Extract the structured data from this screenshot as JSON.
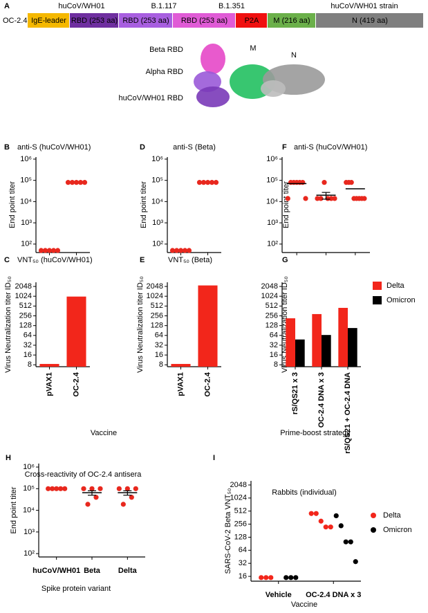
{
  "construct": {
    "panel": "A",
    "name": "OC-2.4",
    "headers": [
      "huCoV/WH01",
      "B.1.117",
      "B.1.351",
      "huCoV/WH01 strain"
    ],
    "segments": [
      {
        "label": "IgE-leader",
        "color": "#f5b800"
      },
      {
        "label": "RBD (253 aa)",
        "color": "#6f2fa0"
      },
      {
        "label": "RBD (253 aa)",
        "color": "#a85fe0"
      },
      {
        "label": "RBD (253 aa)",
        "color": "#e05bd6"
      },
      {
        "label": "P2A",
        "color": "#f01010"
      },
      {
        "label": "M (216 aa)",
        "color": "#6bb04a"
      },
      {
        "label": "N (419 aa)",
        "color": "#7f7f7f"
      }
    ],
    "structure_labels": [
      "Beta RBD",
      "Alpha RBD",
      "huCoV/WH01 RBD",
      "M",
      "N"
    ]
  },
  "chart_data": [
    {
      "type": "strip",
      "panel": "B",
      "title": "anti-S (huCoV/WH01)",
      "y_label": "End point titer",
      "log_scale": true,
      "color": "#e8281e",
      "values": [
        [
          50,
          50,
          50,
          50,
          50
        ],
        [
          80000,
          80000,
          80000,
          80000,
          80000
        ]
      ],
      "ylim": [
        40,
        1250000
      ],
      "yticks": [
        {
          "value": 100,
          "label": "10²"
        },
        {
          "value": 1000,
          "label": "10³"
        },
        {
          "value": 10000,
          "label": "10⁴"
        },
        {
          "value": 100000,
          "label": "10⁵"
        },
        {
          "value": 1000000,
          "label": "10⁶"
        }
      ]
    },
    {
      "type": "bar",
      "panel": "C",
      "title": "VNT₅₀ (huCoV/WH01)",
      "y_label": "Virus Neutralization titer  ID₅₀",
      "x_label": "Vaccine",
      "log_scale": true,
      "color": "#f2261b",
      "categories": [
        "pVAX1",
        "OC-2.4"
      ],
      "values": [
        8.5,
        1000
      ],
      "ylim": [
        7,
        2750
      ],
      "yticks": [
        8,
        16,
        32,
        64,
        128,
        256,
        512,
        1024,
        2048
      ]
    },
    {
      "type": "strip",
      "panel": "D",
      "title": "anti-S (Beta)",
      "y_label": "End point titer",
      "log_scale": true,
      "color": "#e8281e",
      "values": [
        [
          50,
          50,
          50,
          50,
          50
        ],
        [
          80000,
          80000,
          80000,
          80000,
          80000
        ]
      ],
      "ylim": [
        40,
        1250000
      ],
      "yticks": [
        {
          "value": 100,
          "label": "10²"
        },
        {
          "value": 1000,
          "label": "10³"
        },
        {
          "value": 10000,
          "label": "10⁴"
        },
        {
          "value": 100000,
          "label": "10⁵"
        },
        {
          "value": 1000000,
          "label": "10⁶"
        }
      ]
    },
    {
      "type": "bar",
      "panel": "E",
      "title": "VNT₅₀ (Beta)",
      "y_label": "Virus Neutralization titer  ID₅₀",
      "log_scale": true,
      "color": "#f2261b",
      "categories": [
        "pVAX1",
        "OC-2.4"
      ],
      "values": [
        8.5,
        2200
      ],
      "ylim": [
        7,
        2750
      ],
      "yticks": [
        8,
        16,
        32,
        64,
        128,
        256,
        512,
        1024,
        2048
      ]
    },
    {
      "type": "strip",
      "panel": "F",
      "title": "anti-S (huCoV/WH01)",
      "y_label": "End point titer",
      "log_scale": true,
      "color": "#e8281e",
      "values": [
        [
          14000,
          80000,
          80000,
          80000,
          80000,
          80000,
          14000
        ],
        [
          14000,
          14000,
          80000,
          14000,
          14000,
          14000
        ],
        [
          80000,
          80000,
          80000,
          14000,
          14000,
          14000,
          14000,
          14000
        ]
      ],
      "means": [
        70000,
        20000,
        40000
      ],
      "errors": [
        null,
        7000,
        null
      ],
      "ylim": [
        40,
        1250000
      ],
      "yticks": [
        {
          "value": 100,
          "label": "10²"
        },
        {
          "value": 1000,
          "label": "10³"
        },
        {
          "value": 10000,
          "label": "10⁴"
        },
        {
          "value": 100000,
          "label": "10⁵"
        },
        {
          "value": 1000000,
          "label": "10⁶"
        }
      ]
    },
    {
      "type": "grouped_bar",
      "panel": "G",
      "y_label": "Virus Neutralization titer  ID₅₀",
      "x_label": "Prime-boost strategy",
      "log_scale": true,
      "legend": "upper right",
      "categories": [
        "rS/QS21 x 3",
        "OC-2.4 DNA  x 3",
        "rS/QS21 + OC-2.4 DNA"
      ],
      "series": [
        {
          "name": "Delta",
          "color": "#f2261b",
          "values": [
            215,
            290,
            450
          ]
        },
        {
          "name": "Omicron",
          "color": "#000000",
          "values": [
            48,
            66,
            108
          ]
        }
      ],
      "ylim": [
        7,
        2750
      ],
      "yticks": [
        8,
        16,
        32,
        64,
        128,
        256,
        512,
        1024,
        2048
      ]
    },
    {
      "type": "strip",
      "panel": "H",
      "title": "Cross-reactivity of OC-2.4 antisera",
      "y_label": "End point titer",
      "x_label": "Spike protein   variant",
      "log_scale": true,
      "color": "#e8281e",
      "categories": [
        "huCoV/WH01",
        "Beta",
        "Delta"
      ],
      "values": [
        [
          100000,
          100000,
          100000,
          100000,
          100000
        ],
        [
          100000,
          19000,
          100000,
          40000,
          100000
        ],
        [
          100000,
          19000,
          100000,
          40000,
          100000
        ]
      ],
      "means": [
        null,
        65000,
        65000
      ],
      "errors": [
        null,
        15000,
        15000
      ],
      "ylim": [
        70,
        1450000
      ],
      "yticks": [
        {
          "value": 100,
          "label": "10²"
        },
        {
          "value": 1000,
          "label": "10³"
        },
        {
          "value": 10000,
          "label": "10⁴"
        },
        {
          "value": 100000,
          "label": "10⁵"
        },
        {
          "value": 1000000,
          "label": "10⁶"
        }
      ]
    },
    {
      "type": "strip",
      "panel": "I",
      "title": "Rabbits (individual)",
      "y_label": "SARS-CoV-2 Beta VNT₅₀",
      "x_label": "Vaccine",
      "log_scale": true,
      "legend": "right",
      "categories": [
        "Vehicle",
        "OC-2.4 DNA  x 3"
      ],
      "series": [
        {
          "name": "Delta",
          "color": "#f2261b",
          "values": [
            [
              15,
              15,
              15
            ],
            [
              450,
              450,
              300,
              220,
              220
            ]
          ]
        },
        {
          "name": "Omicron",
          "color": "#000000",
          "values": [
            [
              15,
              15,
              15
            ],
            [
              400,
              235,
              100,
              100,
              35
            ]
          ]
        }
      ],
      "ylim": [
        12.4,
        2550
      ],
      "yticks": [
        16,
        32,
        64,
        128,
        256,
        512,
        1024,
        2048
      ]
    }
  ]
}
